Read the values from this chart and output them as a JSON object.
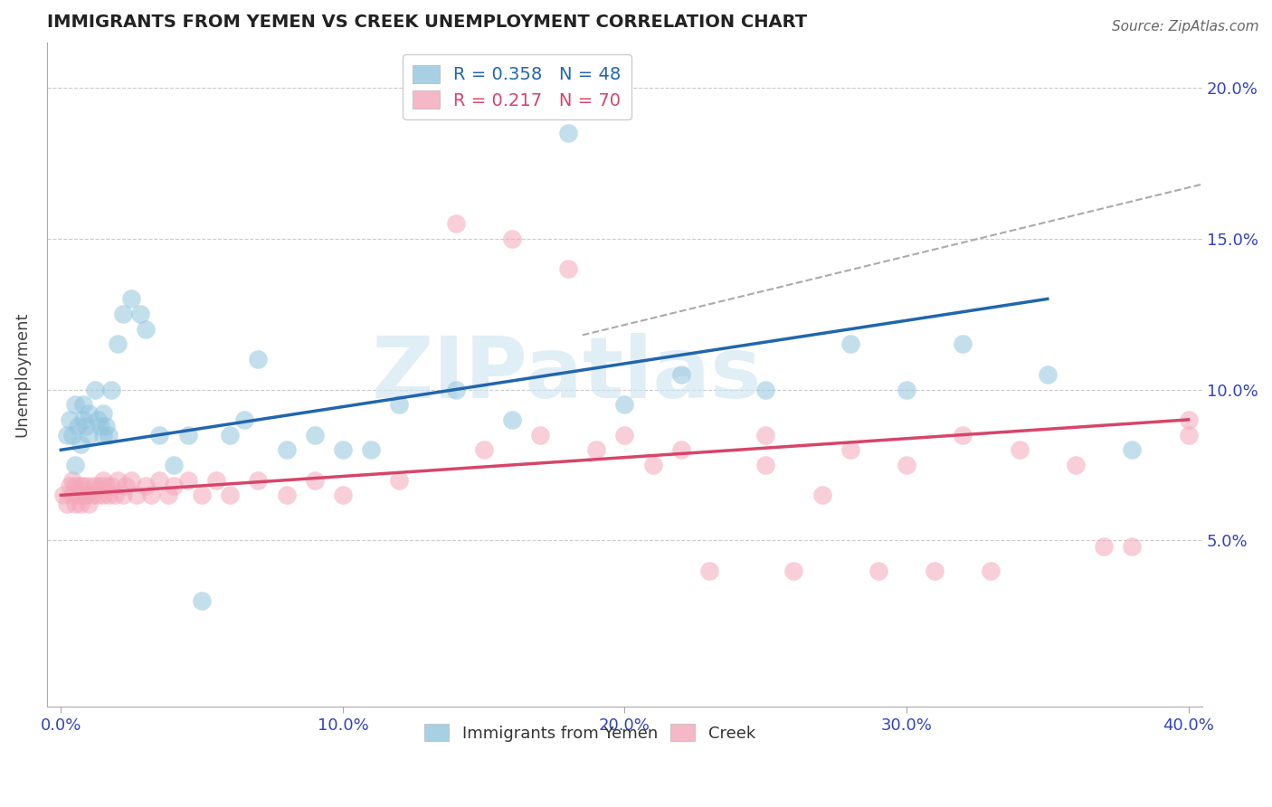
{
  "title": "IMMIGRANTS FROM YEMEN VS CREEK UNEMPLOYMENT CORRELATION CHART",
  "source": "Source: ZipAtlas.com",
  "ylabel": "Unemployment",
  "xlim": [
    -0.005,
    0.405
  ],
  "ylim": [
    -0.005,
    0.215
  ],
  "yticks": [
    0.05,
    0.1,
    0.15,
    0.2
  ],
  "ytick_labels": [
    "5.0%",
    "10.0%",
    "15.0%",
    "20.0%"
  ],
  "xticks": [
    0.0,
    0.1,
    0.2,
    0.3,
    0.4
  ],
  "xtick_labels": [
    "0.0%",
    "10.0%",
    "20.0%",
    "30.0%",
    "40.0%"
  ],
  "legend_r1": "R = 0.358",
  "legend_n1": "N = 48",
  "legend_r2": "R = 0.217",
  "legend_n2": "N = 70",
  "color_blue": "#92c5de",
  "color_blue_edge": "#92c5de",
  "color_pink": "#f4a7b9",
  "color_pink_edge": "#f4a7b9",
  "color_blue_line": "#2166ac",
  "color_pink_line": "#d6456a",
  "color_gray_dashed": "#aaaaaa",
  "watermark": "ZIPatlas",
  "blue_points_x": [
    0.002,
    0.003,
    0.004,
    0.005,
    0.005,
    0.006,
    0.007,
    0.008,
    0.008,
    0.009,
    0.01,
    0.01,
    0.012,
    0.013,
    0.014,
    0.015,
    0.015,
    0.016,
    0.017,
    0.018,
    0.02,
    0.022,
    0.025,
    0.028,
    0.03,
    0.035,
    0.04,
    0.045,
    0.05,
    0.06,
    0.065,
    0.07,
    0.08,
    0.09,
    0.1,
    0.11,
    0.12,
    0.14,
    0.16,
    0.18,
    0.2,
    0.22,
    0.25,
    0.28,
    0.3,
    0.32,
    0.35,
    0.38
  ],
  "blue_points_y": [
    0.085,
    0.09,
    0.085,
    0.075,
    0.095,
    0.088,
    0.082,
    0.09,
    0.095,
    0.088,
    0.085,
    0.092,
    0.1,
    0.09,
    0.088,
    0.085,
    0.092,
    0.088,
    0.085,
    0.1,
    0.115,
    0.125,
    0.13,
    0.125,
    0.12,
    0.085,
    0.075,
    0.085,
    0.03,
    0.085,
    0.09,
    0.11,
    0.08,
    0.085,
    0.08,
    0.08,
    0.095,
    0.1,
    0.09,
    0.185,
    0.095,
    0.105,
    0.1,
    0.115,
    0.1,
    0.115,
    0.105,
    0.08
  ],
  "pink_points_x": [
    0.001,
    0.002,
    0.003,
    0.004,
    0.004,
    0.005,
    0.005,
    0.006,
    0.007,
    0.007,
    0.008,
    0.008,
    0.009,
    0.01,
    0.01,
    0.011,
    0.012,
    0.013,
    0.014,
    0.015,
    0.015,
    0.016,
    0.017,
    0.018,
    0.019,
    0.02,
    0.022,
    0.023,
    0.025,
    0.027,
    0.03,
    0.032,
    0.035,
    0.038,
    0.04,
    0.045,
    0.05,
    0.055,
    0.06,
    0.07,
    0.08,
    0.09,
    0.1,
    0.12,
    0.14,
    0.16,
    0.18,
    0.2,
    0.22,
    0.25,
    0.28,
    0.3,
    0.32,
    0.34,
    0.36,
    0.38,
    0.4,
    0.15,
    0.17,
    0.19,
    0.21,
    0.23,
    0.26,
    0.29,
    0.31,
    0.33,
    0.25,
    0.27,
    0.37,
    0.4
  ],
  "pink_points_y": [
    0.065,
    0.062,
    0.068,
    0.065,
    0.07,
    0.062,
    0.068,
    0.065,
    0.062,
    0.068,
    0.065,
    0.068,
    0.065,
    0.062,
    0.068,
    0.065,
    0.068,
    0.065,
    0.068,
    0.065,
    0.07,
    0.068,
    0.065,
    0.068,
    0.065,
    0.07,
    0.065,
    0.068,
    0.07,
    0.065,
    0.068,
    0.065,
    0.07,
    0.065,
    0.068,
    0.07,
    0.065,
    0.07,
    0.065,
    0.07,
    0.065,
    0.07,
    0.065,
    0.07,
    0.155,
    0.15,
    0.14,
    0.085,
    0.08,
    0.085,
    0.08,
    0.075,
    0.085,
    0.08,
    0.075,
    0.048,
    0.085,
    0.08,
    0.085,
    0.08,
    0.075,
    0.04,
    0.04,
    0.04,
    0.04,
    0.04,
    0.075,
    0.065,
    0.048,
    0.09
  ],
  "blue_line_x": [
    0.0,
    0.35
  ],
  "blue_line_y": [
    0.08,
    0.13
  ],
  "pink_line_x": [
    0.0,
    0.4
  ],
  "pink_line_y": [
    0.065,
    0.09
  ],
  "gray_line_x": [
    0.185,
    0.405
  ],
  "gray_line_y": [
    0.118,
    0.168
  ]
}
